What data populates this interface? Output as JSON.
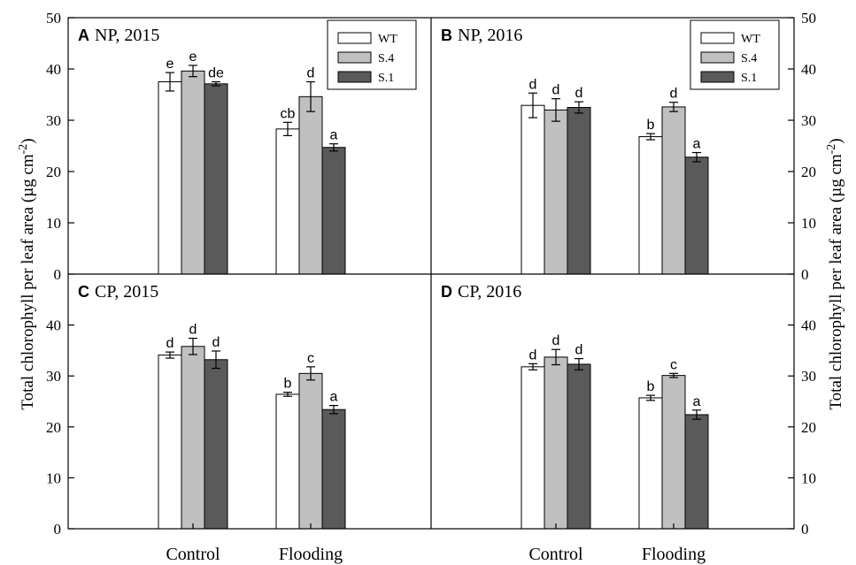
{
  "figure": {
    "ylabel_left": "Total chlorophyll per leaf area (µg cm",
    "ylabel_right": "Total chlorophyll per leaf area (µg cm",
    "ylabel_sup": "-2",
    "ylabel_close": ")"
  },
  "colors": {
    "WT": "#ffffff",
    "S.4": "#c0c0c0",
    "S.1": "#5a5a5a"
  },
  "chart_data": [
    {
      "type": "bar",
      "panel": "A",
      "title": "NP, 2015",
      "categories": [
        "Control",
        "Flooding"
      ],
      "ylim": [
        0,
        50
      ],
      "yticks": [
        0,
        10,
        20,
        30,
        40,
        50
      ],
      "legend": [
        "WT",
        "S.4",
        "S.1"
      ],
      "legend_position": "top-right",
      "series": [
        {
          "name": "WT",
          "values": [
            37.5,
            28.3
          ],
          "errors": [
            1.8,
            1.3
          ],
          "letters": [
            "e",
            "cb"
          ]
        },
        {
          "name": "S.4",
          "values": [
            39.6,
            34.6
          ],
          "errors": [
            1.1,
            2.9
          ],
          "letters": [
            "e",
            "d"
          ]
        },
        {
          "name": "S.1",
          "values": [
            37.1,
            24.7
          ],
          "errors": [
            0.4,
            0.7
          ],
          "letters": [
            "de",
            "a"
          ]
        }
      ]
    },
    {
      "type": "bar",
      "panel": "B",
      "title": "NP, 2016",
      "categories": [
        "Control",
        "Flooding"
      ],
      "ylim": [
        0,
        50
      ],
      "yticks": [
        0,
        10,
        20,
        30,
        40,
        50
      ],
      "legend": [
        "WT",
        "S.4",
        "S.1"
      ],
      "legend_position": "top-right",
      "series": [
        {
          "name": "WT",
          "values": [
            32.9,
            26.8
          ],
          "errors": [
            2.4,
            0.6
          ],
          "letters": [
            "d",
            "b"
          ]
        },
        {
          "name": "S.4",
          "values": [
            32.0,
            32.6
          ],
          "errors": [
            2.2,
            0.9
          ],
          "letters": [
            "d",
            "d"
          ]
        },
        {
          "name": "S.1",
          "values": [
            32.5,
            22.8
          ],
          "errors": [
            1.1,
            0.9
          ],
          "letters": [
            "d",
            "a"
          ]
        }
      ]
    },
    {
      "type": "bar",
      "panel": "C",
      "title": "CP, 2015",
      "categories": [
        "Control",
        "Flooding"
      ],
      "ylim": [
        0,
        50
      ],
      "yticks": [
        0,
        10,
        20,
        30,
        40
      ],
      "series": [
        {
          "name": "WT",
          "values": [
            34.1,
            26.4
          ],
          "errors": [
            0.6,
            0.4
          ],
          "letters": [
            "d",
            "b"
          ]
        },
        {
          "name": "S.4",
          "values": [
            35.8,
            30.5
          ],
          "errors": [
            1.6,
            1.3
          ],
          "letters": [
            "d",
            "c"
          ]
        },
        {
          "name": "S.1",
          "values": [
            33.2,
            23.4
          ],
          "errors": [
            1.7,
            0.8
          ],
          "letters": [
            "d",
            "a"
          ]
        }
      ]
    },
    {
      "type": "bar",
      "panel": "D",
      "title": "CP, 2016",
      "categories": [
        "Control",
        "Flooding"
      ],
      "ylim": [
        0,
        50
      ],
      "yticks": [
        0,
        10,
        20,
        30,
        40
      ],
      "series": [
        {
          "name": "WT",
          "values": [
            31.8,
            25.7
          ],
          "errors": [
            0.6,
            0.5
          ],
          "letters": [
            "d",
            "b"
          ]
        },
        {
          "name": "S.4",
          "values": [
            33.7,
            30.1
          ],
          "errors": [
            1.5,
            0.4
          ],
          "letters": [
            "d",
            "c"
          ]
        },
        {
          "name": "S.1",
          "values": [
            32.3,
            22.4
          ],
          "errors": [
            1.1,
            0.9
          ],
          "letters": [
            "d",
            "a"
          ]
        }
      ]
    }
  ]
}
